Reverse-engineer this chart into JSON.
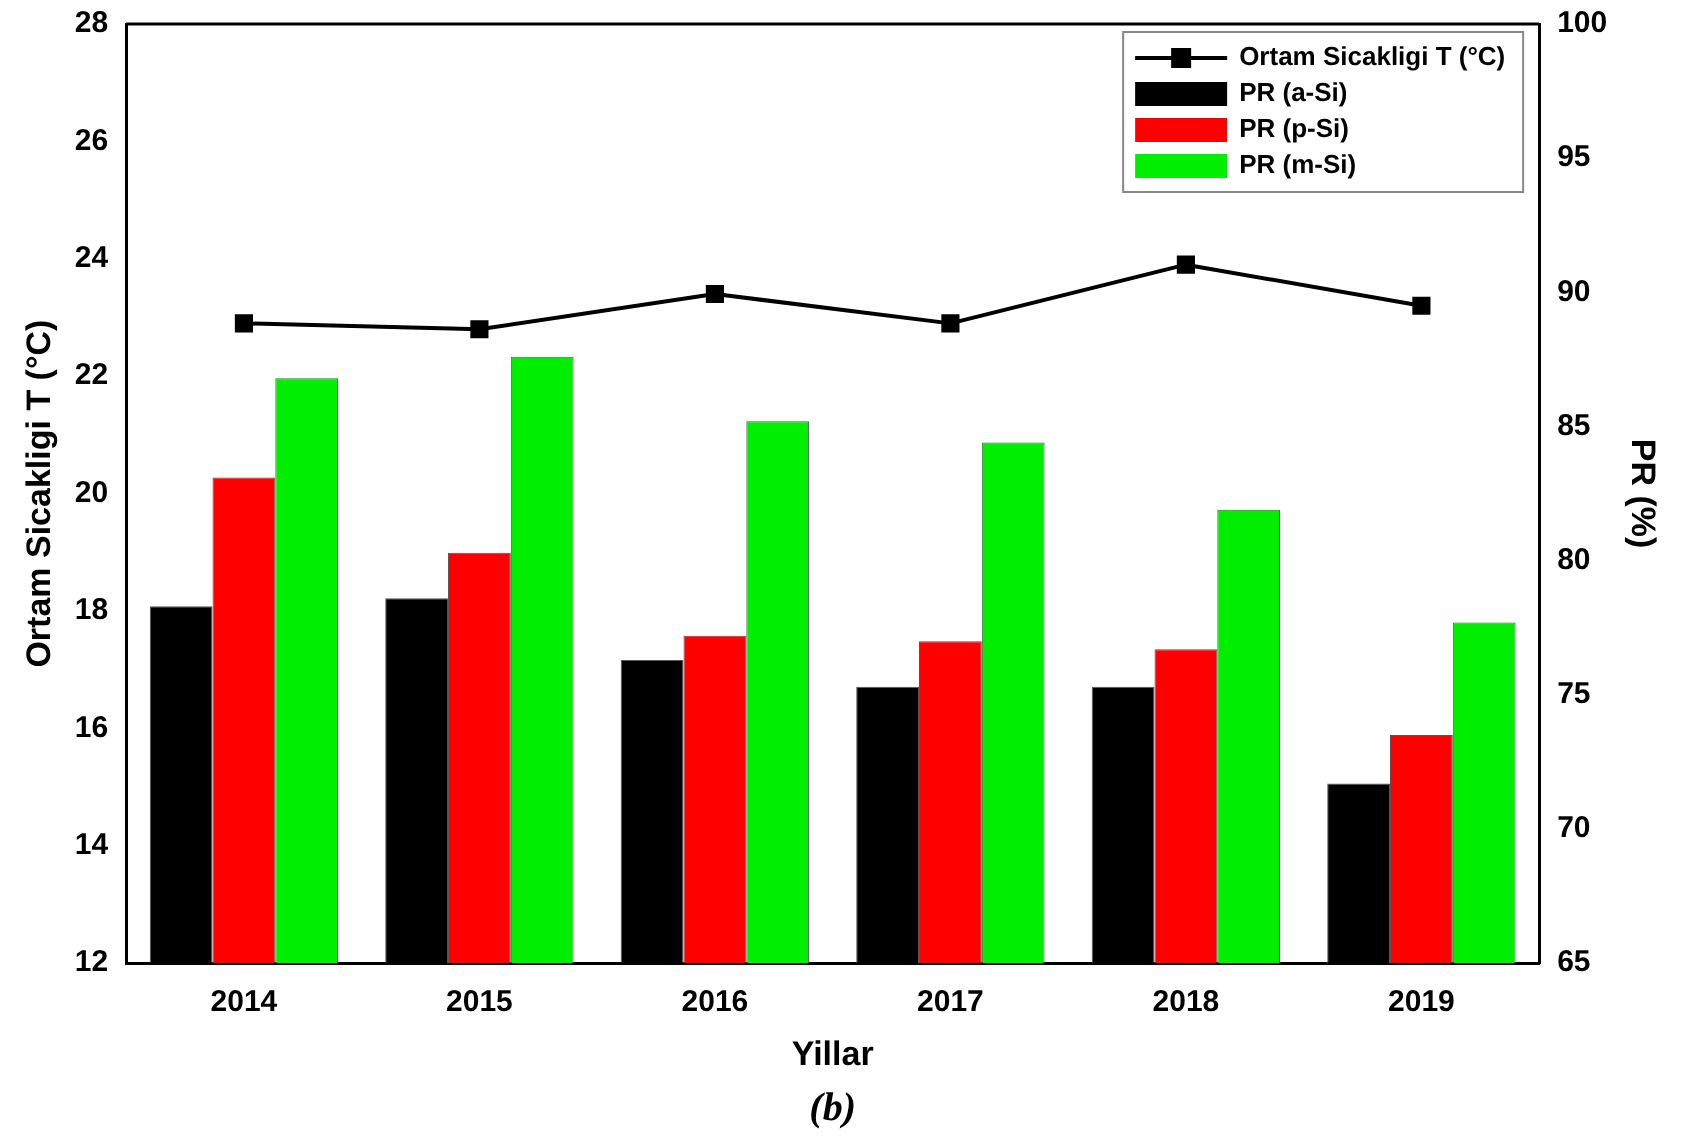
{
  "chart_data": {
    "type": "bar",
    "xlabel": "Yillar",
    "ylabel": "Ortam Sicakligi T (°C)",
    "y2label": "PR (%)",
    "categories": [
      "2014",
      "2015",
      "2016",
      "2017",
      "2018",
      "2019"
    ],
    "series": [
      {
        "name": "Ortam Sicakligi T (°C)",
        "type": "line",
        "axis": "y",
        "color": "#000000",
        "marker": "square",
        "values": [
          22.9,
          22.8,
          23.4,
          22.9,
          23.9,
          23.2
        ]
      },
      {
        "name": "PR (a-Si)",
        "axis": "y2",
        "color": "#000000",
        "values": [
          78.3,
          78.6,
          76.3,
          75.3,
          75.3,
          71.7
        ]
      },
      {
        "name": "PR (p-Si)",
        "axis": "y2",
        "color": "#ff0000",
        "values": [
          83.1,
          80.3,
          77.2,
          77.0,
          76.7,
          73.5
        ]
      },
      {
        "name": "PR (m-Si)",
        "axis": "y2",
        "color": "#00ee00",
        "values": [
          86.8,
          87.6,
          85.2,
          84.4,
          81.9,
          77.7
        ]
      }
    ],
    "ylim": [
      12,
      28
    ],
    "yticks": [
      12,
      14,
      16,
      18,
      20,
      22,
      24,
      26,
      28
    ],
    "y2lim": [
      65,
      100
    ],
    "y2ticks": [
      65,
      70,
      75,
      80,
      85,
      90,
      95,
      100
    ],
    "legend": "top right",
    "grid": false,
    "annotations": [
      "(b)"
    ]
  }
}
